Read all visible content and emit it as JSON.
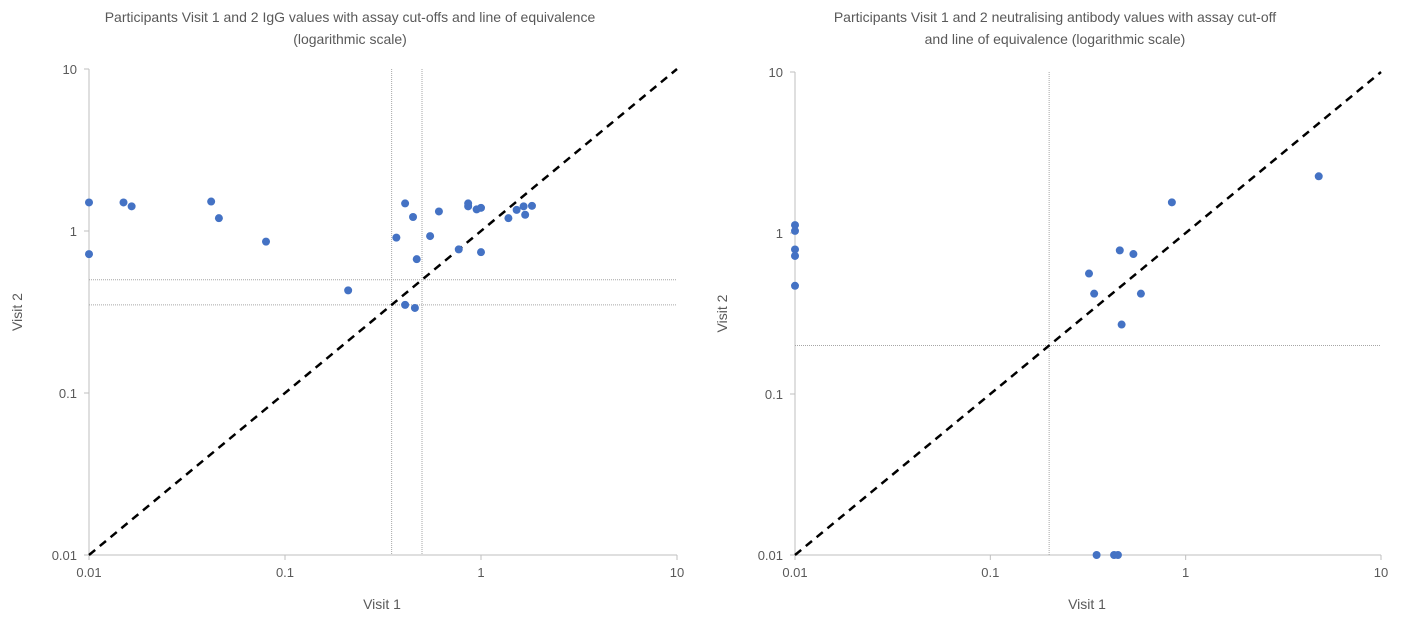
{
  "charts": [
    {
      "title_line1": "Participants Visit 1 and 2 IgG values with assay cut-offs and line of equivalence",
      "title_line2": "(logarithmic scale)",
      "xlabel": "Visit 1",
      "ylabel": "Visit 2"
    },
    {
      "title_line1": "Participants Visit 1 and 2 neutralising antibody values with assay cut-off",
      "title_line2": "and line of equivalence (logarithmic scale)",
      "xlabel": "Visit 1",
      "ylabel": "Visit 2"
    }
  ],
  "chart_data": [
    {
      "type": "scatter",
      "title": "Participants Visit 1 and 2 IgG values with assay cut-offs and line of equivalence (logarithmic scale)",
      "xlabel": "Visit 1",
      "ylabel": "Visit 2",
      "x_scale": "log",
      "y_scale": "log",
      "xlim": [
        0.01,
        10
      ],
      "ylim": [
        0.01,
        10
      ],
      "x_ticks": [
        "0.01",
        "0.1",
        "1",
        "10"
      ],
      "y_ticks": [
        "0.01",
        "0.1",
        "1",
        "10"
      ],
      "grid": false,
      "marker_color": "#4472C4",
      "cutoff_lines": {
        "x": [
          0.35,
          0.5
        ],
        "y": [
          0.35,
          0.5
        ]
      },
      "equivalence_line": true,
      "points": [
        [
          0.01,
          1.5
        ],
        [
          0.01,
          0.72
        ],
        [
          0.015,
          1.5
        ],
        [
          0.0165,
          1.42
        ],
        [
          0.042,
          1.52
        ],
        [
          0.046,
          1.2
        ],
        [
          0.08,
          0.86
        ],
        [
          0.21,
          0.43
        ],
        [
          0.37,
          0.91
        ],
        [
          0.41,
          1.48
        ],
        [
          0.41,
          0.35
        ],
        [
          0.45,
          1.22
        ],
        [
          0.46,
          0.335
        ],
        [
          0.47,
          0.67
        ],
        [
          0.55,
          0.93
        ],
        [
          0.61,
          1.32
        ],
        [
          0.77,
          0.77
        ],
        [
          0.86,
          1.48
        ],
        [
          0.86,
          1.42
        ],
        [
          0.95,
          1.36
        ],
        [
          1.0,
          1.39
        ],
        [
          1.0,
          0.74
        ],
        [
          1.38,
          1.2
        ],
        [
          1.52,
          1.35
        ],
        [
          1.65,
          1.42
        ],
        [
          1.68,
          1.26
        ],
        [
          1.82,
          1.43
        ]
      ]
    },
    {
      "type": "scatter",
      "title": "Participants Visit 1 and 2 neutralising antibody values with assay cut-off and line of equivalence (logarithmic scale)",
      "xlabel": "Visit 1",
      "ylabel": "Visit 2",
      "x_scale": "log",
      "y_scale": "log",
      "xlim": [
        0.01,
        10
      ],
      "ylim": [
        0.01,
        10
      ],
      "x_ticks": [
        "0.01",
        "0.1",
        "1",
        "10"
      ],
      "y_ticks": [
        "0.01",
        "0.1",
        "1",
        "10"
      ],
      "grid": false,
      "marker_color": "#4472C4",
      "cutoff_lines": {
        "x": [
          0.2
        ],
        "y": [
          0.2
        ]
      },
      "equivalence_line": true,
      "points": [
        [
          0.01,
          1.12
        ],
        [
          0.01,
          1.03
        ],
        [
          0.01,
          0.79
        ],
        [
          0.01,
          0.72
        ],
        [
          0.01,
          0.47
        ],
        [
          0.32,
          0.56
        ],
        [
          0.34,
          0.42
        ],
        [
          0.35,
          0.01
        ],
        [
          0.43,
          0.01
        ],
        [
          0.45,
          0.01
        ],
        [
          0.46,
          0.78
        ],
        [
          0.47,
          0.27
        ],
        [
          0.54,
          0.74
        ],
        [
          0.59,
          0.42
        ],
        [
          0.85,
          1.55
        ],
        [
          4.8,
          2.25
        ]
      ]
    }
  ]
}
